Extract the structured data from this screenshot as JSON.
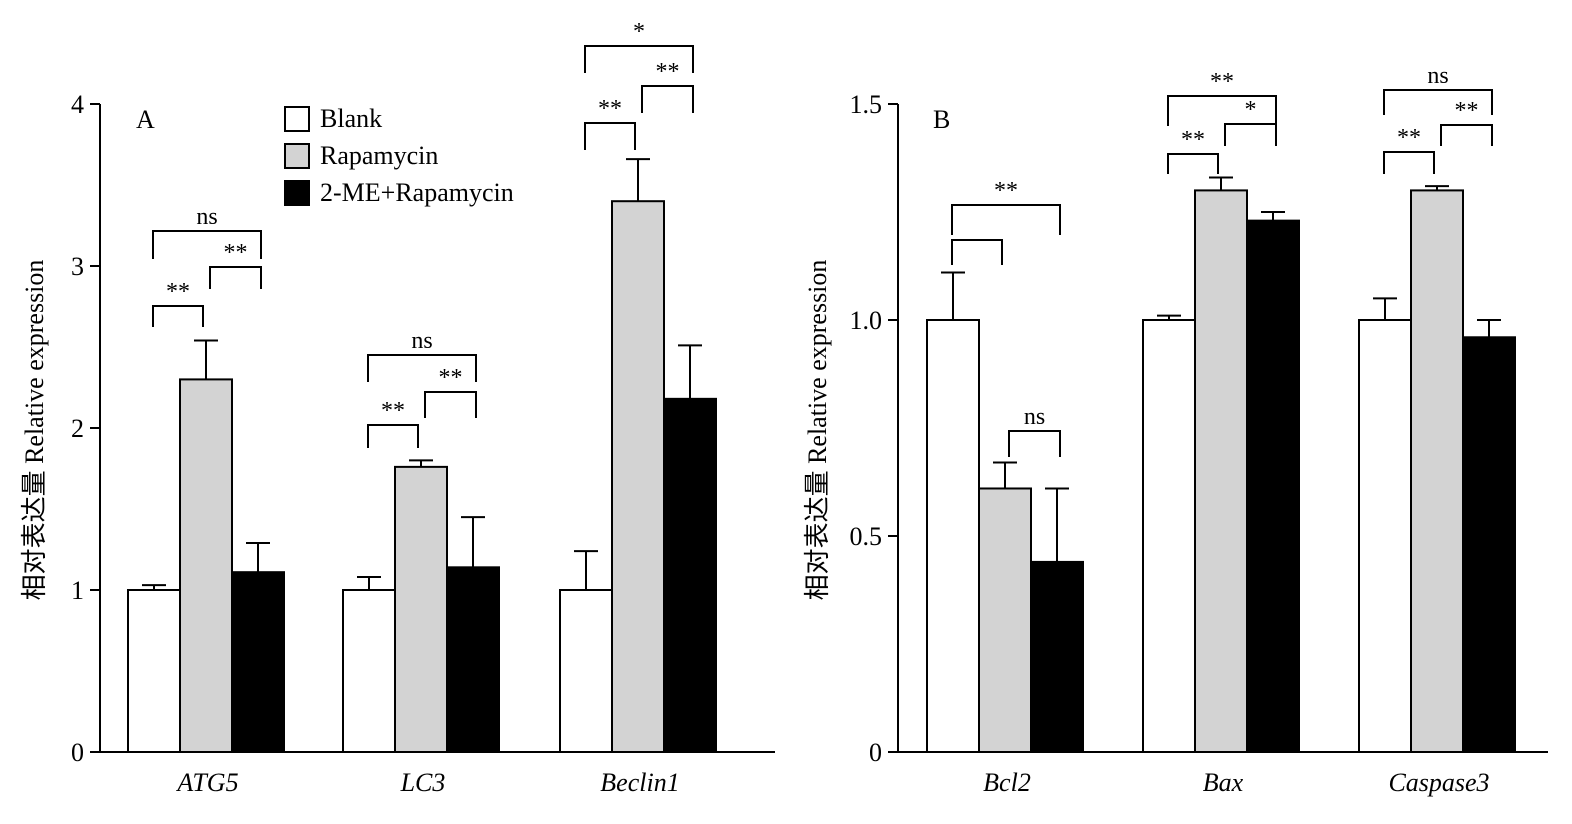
{
  "colors": {
    "Blank": "#ffffff",
    "Rapamycin": "#d3d3d3",
    "2-ME+Rapamycin": "#000000"
  },
  "legend": [
    "Blank",
    "Rapamycin",
    "2-ME+Rapamycin"
  ],
  "chart_data": [
    {
      "type": "bar",
      "panel_label": "A",
      "ylabel": "相对表达量 Relative expression",
      "ylim": [
        0,
        4
      ],
      "yticks": [
        "0",
        "1",
        "2",
        "3",
        "4"
      ],
      "categories": [
        "ATG5",
        "LC3",
        "Beclin1"
      ],
      "series": [
        {
          "name": "Blank",
          "values": [
            1.0,
            1.0,
            1.0
          ],
          "errors": [
            0.03,
            0.08,
            0.24
          ]
        },
        {
          "name": "Rapamycin",
          "values": [
            2.3,
            1.76,
            3.4
          ],
          "errors": [
            0.24,
            0.04,
            0.26
          ]
        },
        {
          "name": "2-ME+Rapamycin",
          "values": [
            1.11,
            1.14,
            2.18
          ],
          "errors": [
            0.18,
            0.31,
            0.33
          ]
        }
      ],
      "significance": [
        {
          "category": 0,
          "from": 0,
          "to": 1,
          "label": "**"
        },
        {
          "category": 0,
          "from": 1,
          "to": 2,
          "label": "**"
        },
        {
          "category": 0,
          "from": 0,
          "to": 2,
          "label": "ns"
        },
        {
          "category": 1,
          "from": 0,
          "to": 1,
          "label": "**"
        },
        {
          "category": 1,
          "from": 1,
          "to": 2,
          "label": "**"
        },
        {
          "category": 1,
          "from": 0,
          "to": 2,
          "label": "ns"
        },
        {
          "category": 2,
          "from": 0,
          "to": 1,
          "label": "**"
        },
        {
          "category": 2,
          "from": 1,
          "to": 2,
          "label": "**"
        },
        {
          "category": 2,
          "from": 0,
          "to": 2,
          "label": "*"
        }
      ]
    },
    {
      "type": "bar",
      "panel_label": "B",
      "ylabel": "相对表达量 Relative expression",
      "ylim": [
        0,
        1.5
      ],
      "yticks": [
        "0",
        "0.5",
        "1.0",
        "1.5"
      ],
      "categories": [
        "Bcl2",
        "Bax",
        "Caspase3"
      ],
      "series": [
        {
          "name": "Blank",
          "values": [
            1.0,
            1.0,
            1.0
          ],
          "errors": [
            0.11,
            0.01,
            0.05
          ]
        },
        {
          "name": "Rapamycin",
          "values": [
            0.61,
            1.3,
            1.3
          ],
          "errors": [
            0.06,
            0.03,
            0.01
          ]
        },
        {
          "name": "2-ME+Rapamycin",
          "values": [
            0.44,
            1.23,
            0.96
          ],
          "errors": [
            0.17,
            0.02,
            0.04
          ]
        }
      ],
      "significance": [
        {
          "category": 0,
          "from": 0,
          "to": 1,
          "label": ""
        },
        {
          "category": 0,
          "from": 1,
          "to": 2,
          "label": "ns"
        },
        {
          "category": 0,
          "from": 0,
          "to": 2,
          "label": "**"
        },
        {
          "category": 1,
          "from": 0,
          "to": 1,
          "label": "**"
        },
        {
          "category": 1,
          "from": 1,
          "to": 2,
          "label": "*"
        },
        {
          "category": 1,
          "from": 0,
          "to": 2,
          "label": "**"
        },
        {
          "category": 2,
          "from": 0,
          "to": 1,
          "label": "**"
        },
        {
          "category": 2,
          "from": 1,
          "to": 2,
          "label": "**"
        },
        {
          "category": 2,
          "from": 0,
          "to": 2,
          "label": "ns"
        }
      ]
    }
  ]
}
